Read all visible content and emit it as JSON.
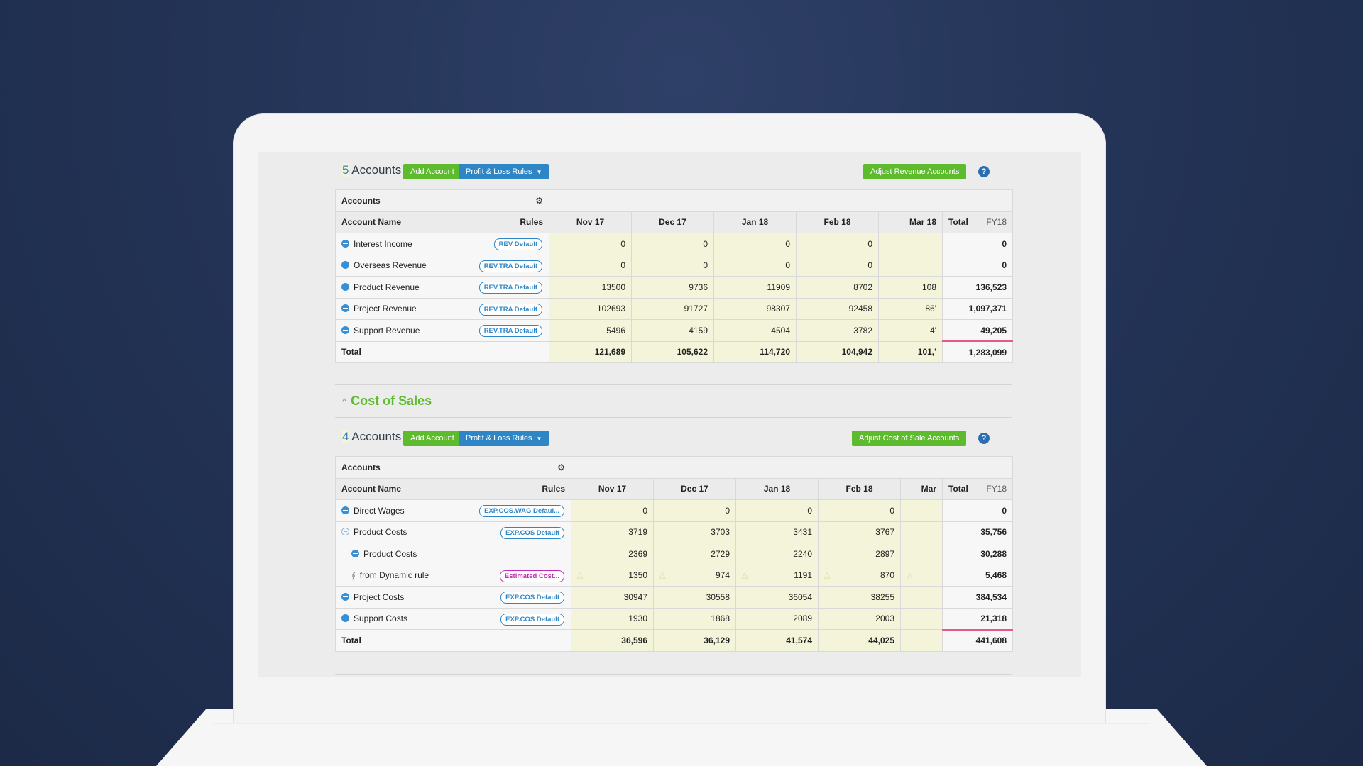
{
  "revenue": {
    "count": "5",
    "accounts_label": "Accounts",
    "add_account": "Add Account",
    "pl_rules": "Profit & Loss Rules",
    "adjust": "Adjust Revenue Accounts",
    "help": "?",
    "table": {
      "accounts_header": "Accounts",
      "account_name_header": "Account Name",
      "rules_header": "Rules",
      "months": [
        "Nov 17",
        "Dec 17",
        "Jan 18",
        "Feb 18",
        "Mar 18"
      ],
      "total_header": "Total",
      "fy_header": "FY18",
      "rows": [
        {
          "name": "Interest Income",
          "rule": "REV Default",
          "values": [
            "0",
            "0",
            "0",
            "0",
            ""
          ],
          "total": "0"
        },
        {
          "name": "Overseas Revenue",
          "rule": "REV.TRA Default",
          "values": [
            "0",
            "0",
            "0",
            "0",
            ""
          ],
          "total": "0"
        },
        {
          "name": "Product Revenue",
          "rule": "REV.TRA Default",
          "values": [
            "13500",
            "9736",
            "11909",
            "8702",
            "108"
          ],
          "total": "136,523"
        },
        {
          "name": "Project Revenue",
          "rule": "REV.TRA Default",
          "values": [
            "102693",
            "91727",
            "98307",
            "92458",
            "86'"
          ],
          "total": "1,097,371"
        },
        {
          "name": "Support Revenue",
          "rule": "REV.TRA Default",
          "values": [
            "5496",
            "4159",
            "4504",
            "3782",
            "4'"
          ],
          "total": "49,205"
        }
      ],
      "total_row": {
        "label": "Total",
        "values": [
          "121,689",
          "105,622",
          "114,720",
          "104,942",
          "101,'"
        ],
        "total": "1,283,099"
      }
    }
  },
  "cost_of_sales": {
    "section_title": "Cost of Sales",
    "count": "4",
    "accounts_label": "Accounts",
    "add_account": "Add Account",
    "pl_rules": "Profit & Loss Rules",
    "adjust": "Adjust Cost of Sale Accounts",
    "help": "?",
    "table": {
      "accounts_header": "Accounts",
      "account_name_header": "Account Name",
      "rules_header": "Rules",
      "months": [
        "Nov 17",
        "Dec 17",
        "Jan 18",
        "Feb 18",
        "Mar"
      ],
      "total_header": "Total",
      "fy_header": "FY18",
      "rows": [
        {
          "name": "Direct Wages",
          "rule": "EXP.COS.WAG Defaul...",
          "values": [
            "0",
            "0",
            "0",
            "0",
            ""
          ],
          "total": "0"
        },
        {
          "name": "Product Costs",
          "rule": "EXP.COS Default",
          "values": [
            "3719",
            "3703",
            "3431",
            "3767",
            ""
          ],
          "total": "35,756"
        },
        {
          "name": "Product Costs",
          "rule": "",
          "values": [
            "2369",
            "2729",
            "2240",
            "2897",
            ""
          ],
          "total": "30,288"
        },
        {
          "name": "from Dynamic rule",
          "rule": "Estimated Cost...",
          "values": [
            "1350",
            "974",
            "1191",
            "870",
            ""
          ],
          "total": "5,468"
        },
        {
          "name": "Project Costs",
          "rule": "EXP.COS Default",
          "values": [
            "30947",
            "30558",
            "36054",
            "38255",
            ""
          ],
          "total": "384,534"
        },
        {
          "name": "Support Costs",
          "rule": "EXP.COS Default",
          "values": [
            "1930",
            "1868",
            "2089",
            "2003",
            ""
          ],
          "total": "21,318"
        }
      ],
      "total_row": {
        "label": "Total",
        "values": [
          "36,596",
          "36,129",
          "41,574",
          "44,025",
          ""
        ],
        "total": "441,608"
      }
    }
  }
}
